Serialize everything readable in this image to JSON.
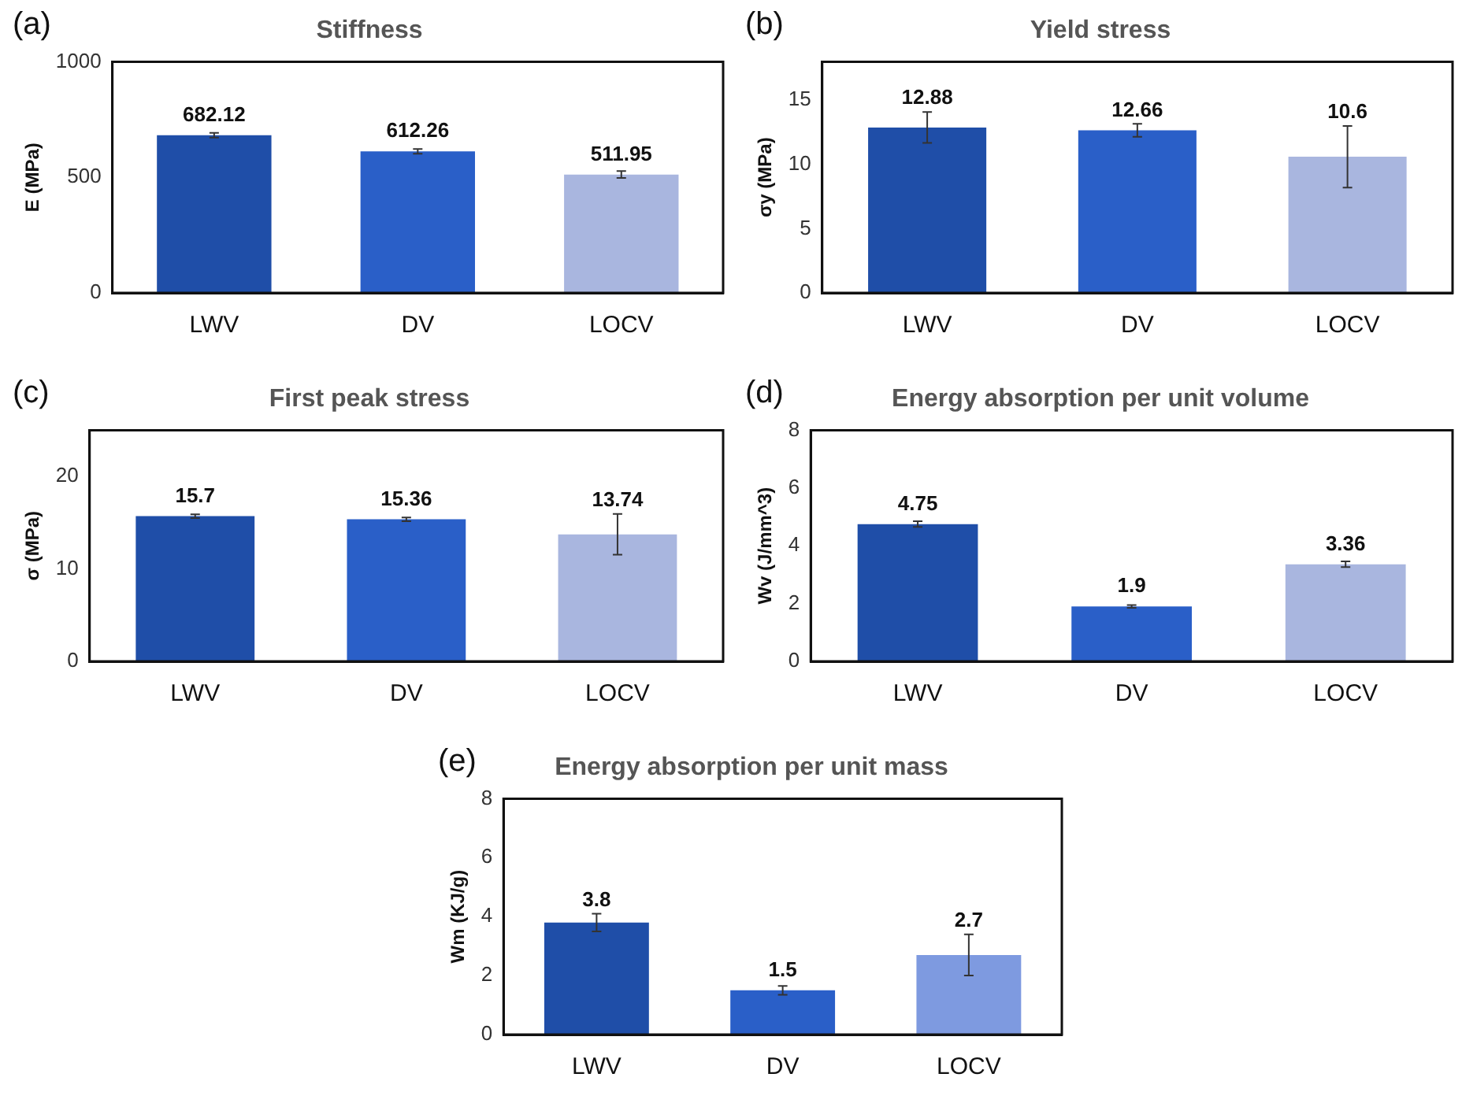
{
  "chart_data": [
    {
      "type": "bar",
      "title": "Stiffness",
      "annotations": [
        "(a)"
      ],
      "ylabel": "E (MPa)",
      "categories": [
        "LWV",
        "DV",
        "LOCV"
      ],
      "values": [
        682.12,
        612.26,
        511.95
      ],
      "errors": [
        10,
        10,
        15
      ],
      "colors": [
        "#1f4ea8",
        "#2a5fc8",
        "#a9b6df"
      ],
      "ylim": [
        0,
        1000
      ],
      "yticks": [
        0,
        500,
        1000
      ],
      "data_labels": true
    },
    {
      "type": "bar",
      "title": "Yield stress",
      "annotations": [
        "(b)"
      ],
      "ylabel": "σy (MPa)",
      "categories": [
        "LWV",
        "DV",
        "LOCV"
      ],
      "values": [
        12.88,
        12.66,
        10.6
      ],
      "errors": [
        1.2,
        0.5,
        2.4
      ],
      "colors": [
        "#1f4ea8",
        "#2a5fc8",
        "#a9b6df"
      ],
      "ylim": [
        0,
        18
      ],
      "yticks": [
        0,
        5,
        10,
        15
      ],
      "data_labels": true
    },
    {
      "type": "bar",
      "title": "First peak stress",
      "annotations": [
        "(c)"
      ],
      "ylabel": "σ (MPa)",
      "categories": [
        "LWV",
        "DV",
        "LOCV"
      ],
      "values": [
        15.7,
        15.36,
        13.74
      ],
      "errors": [
        0.2,
        0.2,
        2.2
      ],
      "colors": [
        "#1f4ea8",
        "#2a5fc8",
        "#a9b6df"
      ],
      "ylim": [
        0,
        25
      ],
      "yticks": [
        0,
        10,
        20
      ],
      "data_labels": true
    },
    {
      "type": "bar",
      "title": "Energy absorption per unit volume",
      "annotations": [
        "(d)"
      ],
      "ylabel": "Wv (J/mm^3)",
      "categories": [
        "LWV",
        "DV",
        "LOCV"
      ],
      "values": [
        4.75,
        1.9,
        3.36
      ],
      "errors": [
        0.1,
        0.05,
        0.1
      ],
      "colors": [
        "#1f4ea8",
        "#2a5fc8",
        "#a9b6df"
      ],
      "ylim": [
        0,
        8
      ],
      "yticks": [
        0,
        2,
        4,
        6,
        8
      ],
      "data_labels": true
    },
    {
      "type": "bar",
      "title": "Energy absorption per unit mass",
      "annotations": [
        "(e)"
      ],
      "ylabel": "Wm (KJ/g)",
      "categories": [
        "LWV",
        "DV",
        "LOCV"
      ],
      "values": [
        3.8,
        1.5,
        2.7
      ],
      "errors": [
        0.3,
        0.15,
        0.7
      ],
      "colors": [
        "#1f4ea8",
        "#2a5fc8",
        "#7e9ae0"
      ],
      "ylim": [
        0,
        8
      ],
      "yticks": [
        0,
        2,
        4,
        6,
        8
      ],
      "data_labels": true
    }
  ]
}
